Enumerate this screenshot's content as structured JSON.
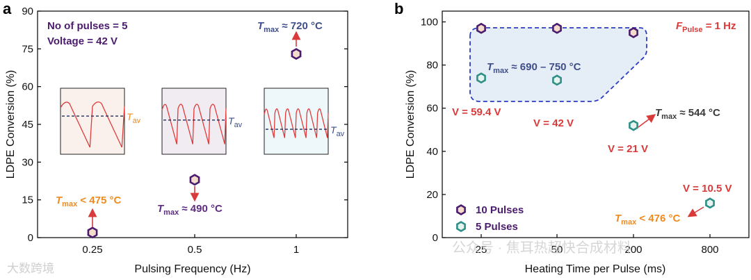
{
  "colors": {
    "purple": "#4b1c6e",
    "hexFill": "#f3dccb",
    "teal": "#2e8f86",
    "tealFill": "#e7f3ef",
    "red": "#d93a3a",
    "orange": "#f08a1e",
    "navy": "#3f4e8a",
    "dashBlue": "#2b3bc4",
    "regionFill": "#e5eef7"
  },
  "watermark": {
    "left": "大数跨境",
    "right": "公众号 · 焦耳热超快合成材料"
  },
  "chart_data": [
    {
      "panel": "a",
      "type": "scatter",
      "xlabel": "Pulsing Frequency (Hz)",
      "ylabel": "LDPE Conversion (%)",
      "ylim": [
        0,
        90
      ],
      "yticks": [
        "0",
        "15",
        "30",
        "45",
        "60",
        "75",
        "90"
      ],
      "categories": [
        "0.25",
        "0.5",
        "1"
      ],
      "values": [
        2,
        23,
        73
      ],
      "conditions": [
        "No of pulses = 5",
        "Voltage = 42 V"
      ],
      "annotations": [
        {
          "t": "T",
          "sub": "max",
          "rel": " < 475 °C",
          "color": "orange"
        },
        {
          "t": "T",
          "sub": "max",
          "rel": " ≈ 490 °C",
          "color": "purple"
        },
        {
          "t": "T",
          "sub": "max",
          "rel": " ≈ 720 °C",
          "color": "navy"
        }
      ],
      "insets": [
        {
          "label": "T",
          "sub": "av",
          "cycles": 2,
          "mean": 0.62
        },
        {
          "label": "T",
          "sub": "av",
          "cycles": 4,
          "mean": 0.56
        },
        {
          "label": "T",
          "sub": "av",
          "cycles": 6,
          "mean": 0.42
        }
      ]
    },
    {
      "panel": "b",
      "type": "scatter",
      "xlabel": "Heating Time per Pulse (ms)",
      "ylabel": "LDPE Conversion (%)",
      "ylim": [
        0,
        105
      ],
      "yticks": [
        "0",
        "20",
        "40",
        "60",
        "80",
        "100"
      ],
      "categories": [
        "25",
        "50",
        "200",
        "800"
      ],
      "series": [
        {
          "name": "10 Pulses",
          "points": [
            {
              "x": "25",
              "y": 97
            },
            {
              "x": "50",
              "y": 97
            },
            {
              "x": "200",
              "y": 95
            }
          ]
        },
        {
          "name": "5 Pulses",
          "points": [
            {
              "x": "25",
              "y": 74
            },
            {
              "x": "50",
              "y": 73
            },
            {
              "x": "200",
              "y": 52
            },
            {
              "x": "800",
              "y": 16
            }
          ]
        }
      ],
      "legend": [
        "10 Pulses",
        "5 Pulses"
      ],
      "frequency": {
        "t": "F",
        "sub": "Pulse",
        "rel": " = 1 Hz"
      },
      "region_label": {
        "t": "T",
        "sub": "max",
        "rel": " ≈ 690 – 750 °C"
      },
      "voltages": [
        "V = 59.4 V",
        "V = 42 V",
        "V = 21 V",
        "V = 10.5 V"
      ],
      "annotations": [
        {
          "t": "T",
          "sub": "max",
          "rel": " ≈ 544 °C"
        },
        {
          "t": "T",
          "sub": "max",
          "rel": " < 476 °C"
        }
      ]
    }
  ]
}
